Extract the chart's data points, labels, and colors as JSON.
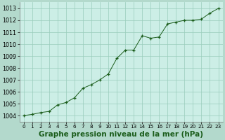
{
  "background_color": "#b3d9cc",
  "plot_bg_color": "#cceee6",
  "line_color": "#1a5c1a",
  "marker_color": "#1a5c1a",
  "grid_color": "#99ccbb",
  "x_values": [
    0,
    1,
    2,
    3,
    4,
    5,
    6,
    7,
    8,
    9,
    10,
    11,
    12,
    13,
    14,
    15,
    16,
    17,
    18,
    19,
    20,
    21,
    22,
    23
  ],
  "y_values": [
    1004.0,
    1004.1,
    1004.25,
    1004.35,
    1004.9,
    1005.1,
    1005.5,
    1006.3,
    1006.6,
    1007.0,
    1007.5,
    1008.8,
    1009.5,
    1009.5,
    1010.7,
    1010.5,
    1010.6,
    1011.7,
    1011.85,
    1012.0,
    1012.0,
    1012.1,
    1012.6,
    1013.0
  ],
  "xlim": [
    -0.5,
    23.5
  ],
  "ylim": [
    1003.5,
    1013.5
  ],
  "yticks": [
    1004,
    1005,
    1006,
    1007,
    1008,
    1009,
    1010,
    1011,
    1012,
    1013
  ],
  "xticks": [
    0,
    1,
    2,
    3,
    4,
    5,
    6,
    7,
    8,
    9,
    10,
    11,
    12,
    13,
    14,
    15,
    16,
    17,
    18,
    19,
    20,
    21,
    22,
    23
  ],
  "xlabel": "Graphe pression niveau de la mer (hPa)",
  "tick_fontsize": 6,
  "label_fontsize": 7.5,
  "linewidth": 0.7,
  "markersize": 3.5
}
